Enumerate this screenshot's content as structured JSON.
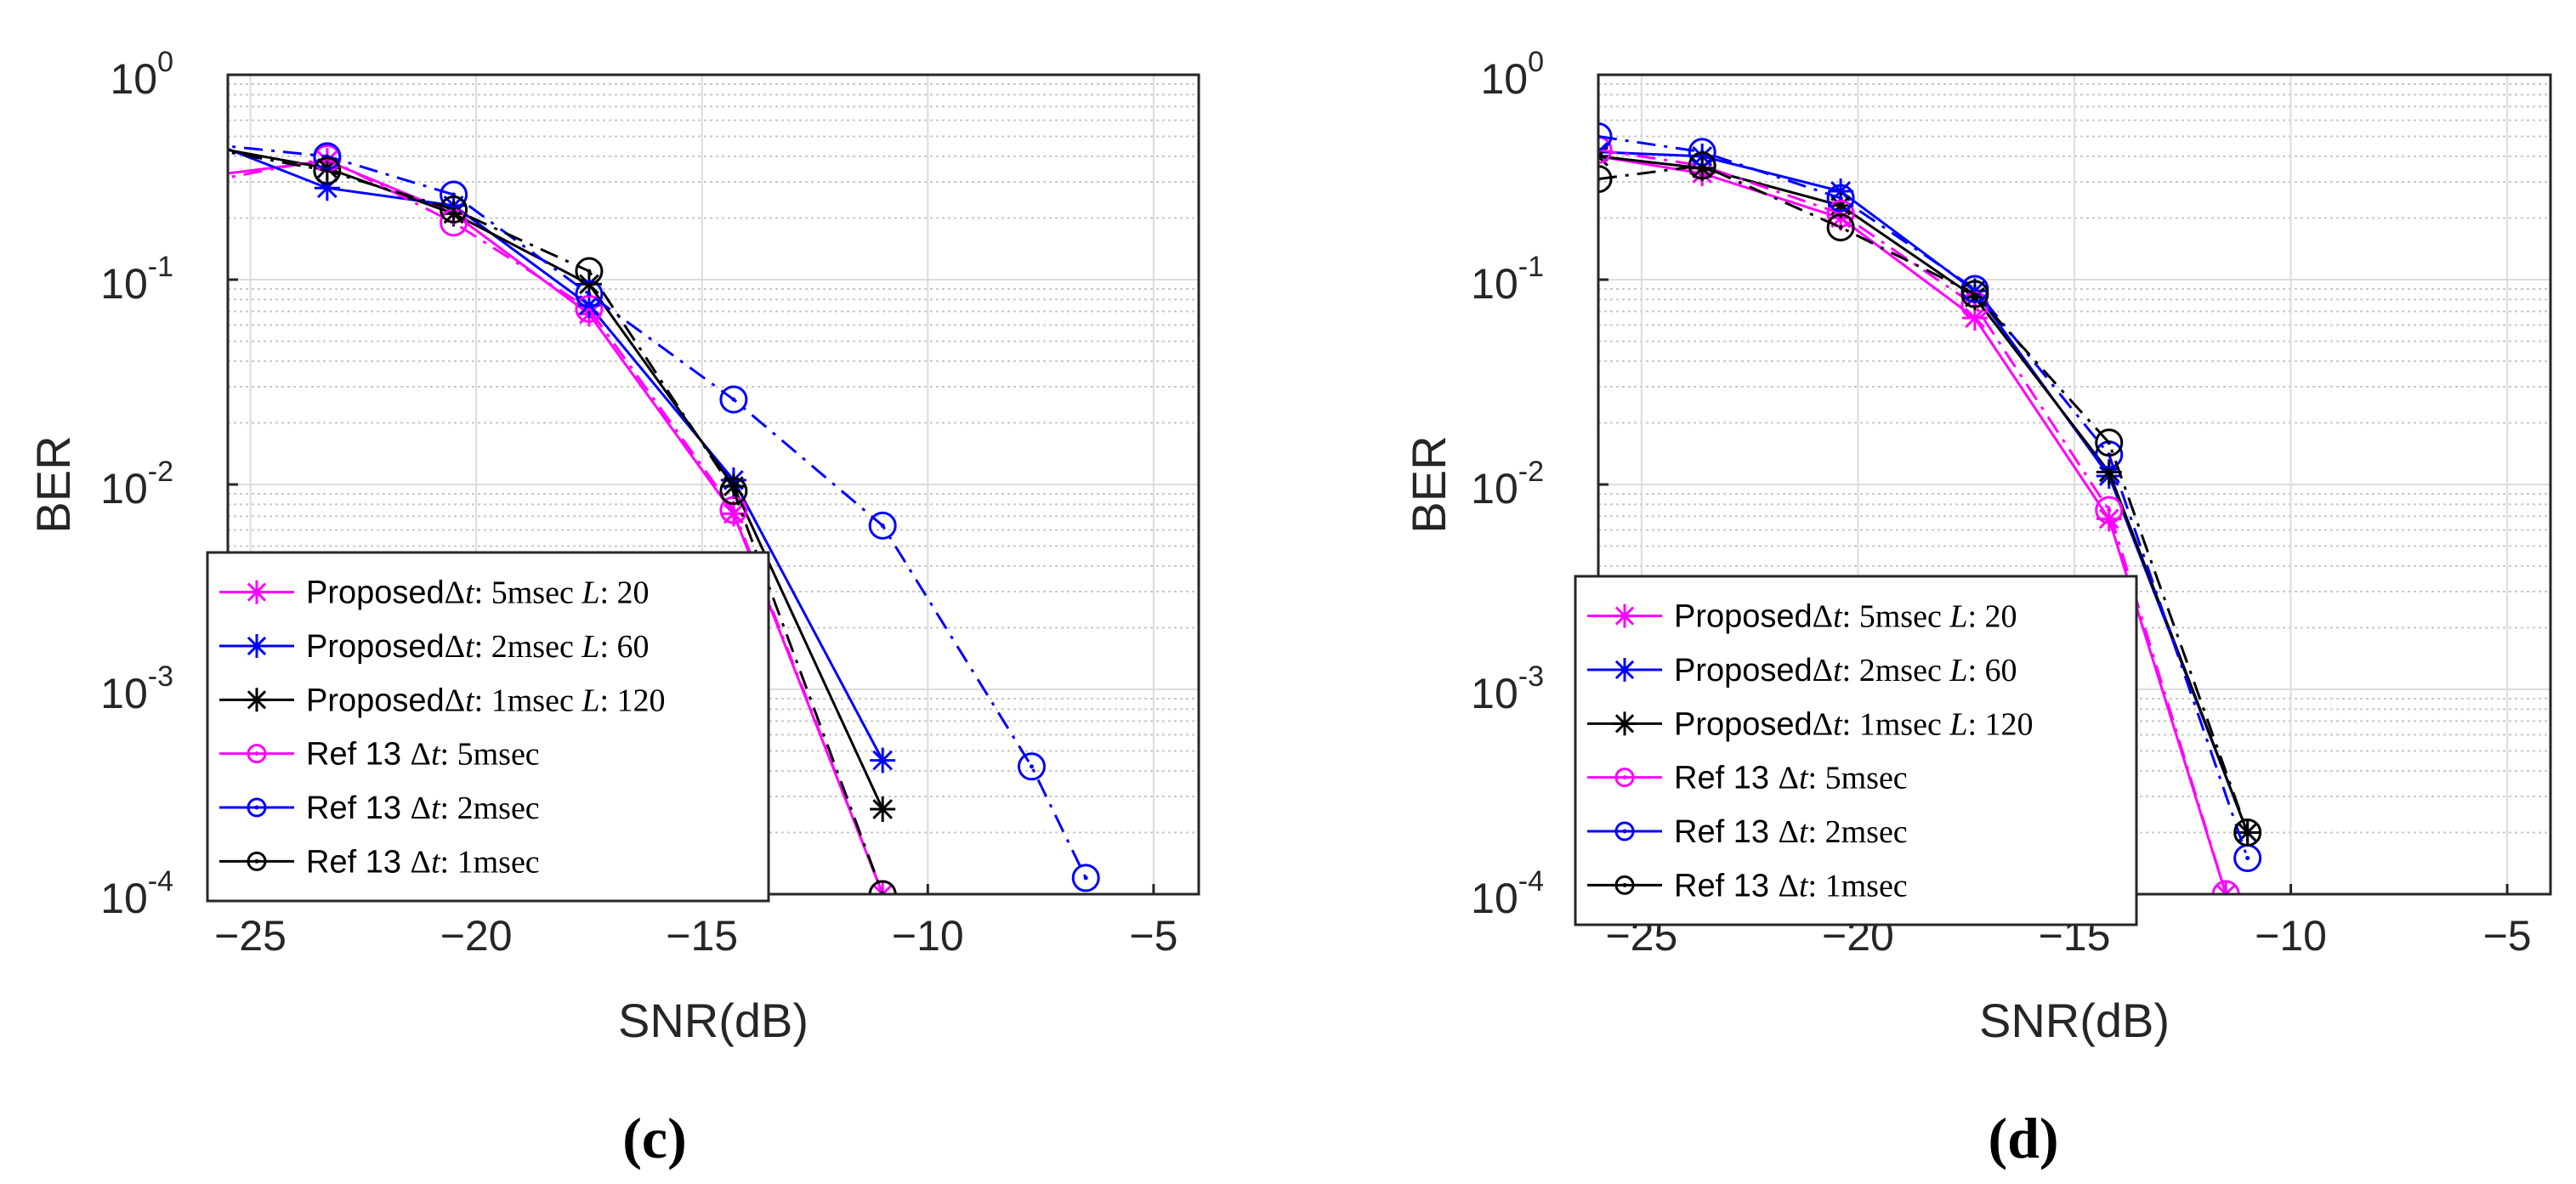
{
  "chart_data": [
    {
      "type": "line",
      "panel_label": "(c)",
      "xlabel": "SNR(dB)",
      "ylabel": "BER",
      "yscale": "log",
      "xlim": [
        -25.5,
        -4
      ],
      "ylim": [
        0.0001,
        1
      ],
      "grid": true,
      "x_ticks": [
        -25,
        -20,
        -15,
        -10,
        -5
      ],
      "x_tick_labels": [
        "−25",
        "−20",
        "−15",
        "−10",
        "−5"
      ],
      "y_ticks": [
        {
          "base": "10",
          "exp": "0",
          "value": 1
        },
        {
          "base": "10",
          "exp": "-1",
          "value": 0.1
        },
        {
          "base": "10",
          "exp": "-2",
          "value": 0.01
        },
        {
          "base": "10",
          "exp": "-3",
          "value": 0.001
        },
        {
          "base": "10",
          "exp": "-4",
          "value": 0.0001
        }
      ],
      "legend_location": "lower-left",
      "series": [
        {
          "name": "ProposedΔt: 5msec L: 20",
          "legend": {
            "prefix": "Proposed",
            "delta": "Δ",
            "t": "t",
            "sep1": ": ",
            "dt_value": "5msec ",
            "L": "L",
            "sep2": ": ",
            "L_value": "20"
          },
          "color": "#ff00ff",
          "dash": "solid",
          "marker": "star",
          "x": [
            -26,
            -23.3,
            -20.5,
            -17.5,
            -14.3,
            -11
          ],
          "y": [
            0.32,
            0.38,
            0.21,
            0.068,
            0.0072,
            0.0001
          ]
        },
        {
          "name": "ProposedΔt: 2msec L: 60",
          "legend": {
            "prefix": "Proposed",
            "delta": "Δ",
            "t": "t",
            "sep1": ": ",
            "dt_value": "2msec ",
            "L": "L",
            "sep2": ": ",
            "L_value": "60"
          },
          "color": "#0000ff",
          "dash": "solid",
          "marker": "star",
          "x": [
            -26,
            -23.3,
            -20.5,
            -17.5,
            -14.3,
            -11
          ],
          "y": [
            0.48,
            0.28,
            0.23,
            0.075,
            0.0105,
            0.00045
          ]
        },
        {
          "name": "ProposedΔt: 1msec L: 120",
          "legend": {
            "prefix": "Proposed",
            "delta": "Δ",
            "t": "t",
            "sep1": ": ",
            "dt_value": "1msec ",
            "L": "L",
            "sep2": ": ",
            "L_value": "120"
          },
          "color": "#000000",
          "dash": "solid",
          "marker": "star",
          "x": [
            -26,
            -23.3,
            -20.5,
            -17.5,
            -14.3,
            -11
          ],
          "y": [
            0.45,
            0.35,
            0.21,
            0.095,
            0.0098,
            0.00026
          ]
        },
        {
          "name": "Ref 13 Δt: 5msec",
          "legend": {
            "prefix": "Ref 13 ",
            "delta": "Δ",
            "t": "t",
            "sep1": ": ",
            "dt_value": "5msec"
          },
          "color": "#ff00ff",
          "dash": "dashdot",
          "marker": "circle",
          "x": [
            -26,
            -23.3,
            -20.5,
            -17.5,
            -14.3,
            -11
          ],
          "y": [
            0.3,
            0.39,
            0.19,
            0.072,
            0.0075,
            0.0001
          ]
        },
        {
          "name": "Ref 13 Δt: 2msec",
          "legend": {
            "prefix": "Ref 13 ",
            "delta": "Δ",
            "t": "t",
            "sep1": ": ",
            "dt_value": "2msec"
          },
          "color": "#0000ff",
          "dash": "dashdot",
          "marker": "circle",
          "x": [
            -26,
            -23.3,
            -20.5,
            -17.5,
            -14.3,
            -11,
            -7.7,
            -6.5
          ],
          "y": [
            0.46,
            0.4,
            0.26,
            0.085,
            0.026,
            0.0063,
            0.00042,
            0.00012
          ]
        },
        {
          "name": "Ref 13 Δt: 1msec",
          "legend": {
            "prefix": "Ref 13 ",
            "delta": "Δ",
            "t": "t",
            "sep1": ": ",
            "dt_value": "1msec"
          },
          "color": "#000000",
          "dash": "dashdot",
          "marker": "circle",
          "x": [
            -26,
            -23.3,
            -20.5,
            -17.5,
            -14.3,
            -11
          ],
          "y": [
            0.44,
            0.34,
            0.22,
            0.11,
            0.0093,
            0.0001
          ]
        }
      ]
    },
    {
      "type": "line",
      "panel_label": "(d)",
      "xlabel": "SNR(dB)",
      "ylabel": "BER",
      "yscale": "log",
      "xlim": [
        -26,
        -4
      ],
      "ylim": [
        0.0001,
        1
      ],
      "grid": true,
      "x_ticks": [
        -25,
        -20,
        -15,
        -10,
        -5
      ],
      "x_tick_labels": [
        "−25",
        "−20",
        "−15",
        "−10",
        "−5"
      ],
      "y_ticks": [
        {
          "base": "10",
          "exp": "0",
          "value": 1
        },
        {
          "base": "10",
          "exp": "-1",
          "value": 0.1
        },
        {
          "base": "10",
          "exp": "-2",
          "value": 0.01
        },
        {
          "base": "10",
          "exp": "-3",
          "value": 0.001
        },
        {
          "base": "10",
          "exp": "-4",
          "value": 0.0001
        }
      ],
      "legend_location": "lower-left",
      "series": [
        {
          "name": "ProposedΔt: 5msec L: 20",
          "legend": {
            "prefix": "Proposed",
            "delta": "Δ",
            "t": "t",
            "sep1": ": ",
            "dt_value": "5msec ",
            "L": "L",
            "sep2": ": ",
            "L_value": "20"
          },
          "color": "#ff00ff",
          "dash": "solid",
          "marker": "star",
          "x": [
            -26,
            -23.6,
            -20.4,
            -17.3,
            -14.2,
            -11.5
          ],
          "y": [
            0.4,
            0.33,
            0.2,
            0.065,
            0.0068,
            0.0001
          ]
        },
        {
          "name": "ProposedΔt: 2msec L: 60",
          "legend": {
            "prefix": "Proposed",
            "delta": "Δ",
            "t": "t",
            "sep1": ": ",
            "dt_value": "2msec ",
            "L": "L",
            "sep2": ": ",
            "L_value": "60"
          },
          "color": "#0000ff",
          "dash": "solid",
          "marker": "star",
          "x": [
            -26,
            -23.6,
            -20.4,
            -17.3,
            -14.2,
            -11
          ],
          "y": [
            0.42,
            0.4,
            0.27,
            0.088,
            0.011,
            0.0002
          ]
        },
        {
          "name": "ProposedΔt: 1msec L: 120",
          "legend": {
            "prefix": "Proposed",
            "delta": "Δ",
            "t": "t",
            "sep1": ": ",
            "dt_value": "1msec ",
            "L": "L",
            "sep2": ": ",
            "L_value": "120"
          },
          "color": "#000000",
          "dash": "solid",
          "marker": "star",
          "x": [
            -26,
            -23.6,
            -20.4,
            -17.3,
            -14.2,
            -11
          ],
          "y": [
            0.4,
            0.35,
            0.23,
            0.082,
            0.0115,
            0.0002
          ]
        },
        {
          "name": "Ref 13 Δt: 5msec",
          "legend": {
            "prefix": "Ref 13 ",
            "delta": "Δ",
            "t": "t",
            "sep1": ": ",
            "dt_value": "5msec"
          },
          "color": "#ff00ff",
          "dash": "dashdot",
          "marker": "circle",
          "x": [
            -26,
            -23.6,
            -20.4,
            -17.3,
            -14.2,
            -11.5
          ],
          "y": [
            0.43,
            0.36,
            0.21,
            0.075,
            0.0075,
            0.0001
          ]
        },
        {
          "name": "Ref 13 Δt: 2msec",
          "legend": {
            "prefix": "Ref 13 ",
            "delta": "Δ",
            "t": "t",
            "sep1": ": ",
            "dt_value": "2msec"
          },
          "color": "#0000ff",
          "dash": "dashdot",
          "marker": "circle",
          "x": [
            -26,
            -23.6,
            -20.4,
            -17.3,
            -14.2,
            -11
          ],
          "y": [
            0.5,
            0.42,
            0.25,
            0.09,
            0.014,
            0.00015
          ]
        },
        {
          "name": "Ref 13 Δt: 1msec",
          "legend": {
            "prefix": "Ref 13 ",
            "delta": "Δ",
            "t": "t",
            "sep1": ": ",
            "dt_value": "1msec"
          },
          "color": "#000000",
          "dash": "dashdot",
          "marker": "circle",
          "x": [
            -26,
            -23.6,
            -20.4,
            -17.3,
            -14.2,
            -11
          ],
          "y": [
            0.31,
            0.36,
            0.18,
            0.085,
            0.016,
            0.0002
          ]
        }
      ]
    }
  ]
}
